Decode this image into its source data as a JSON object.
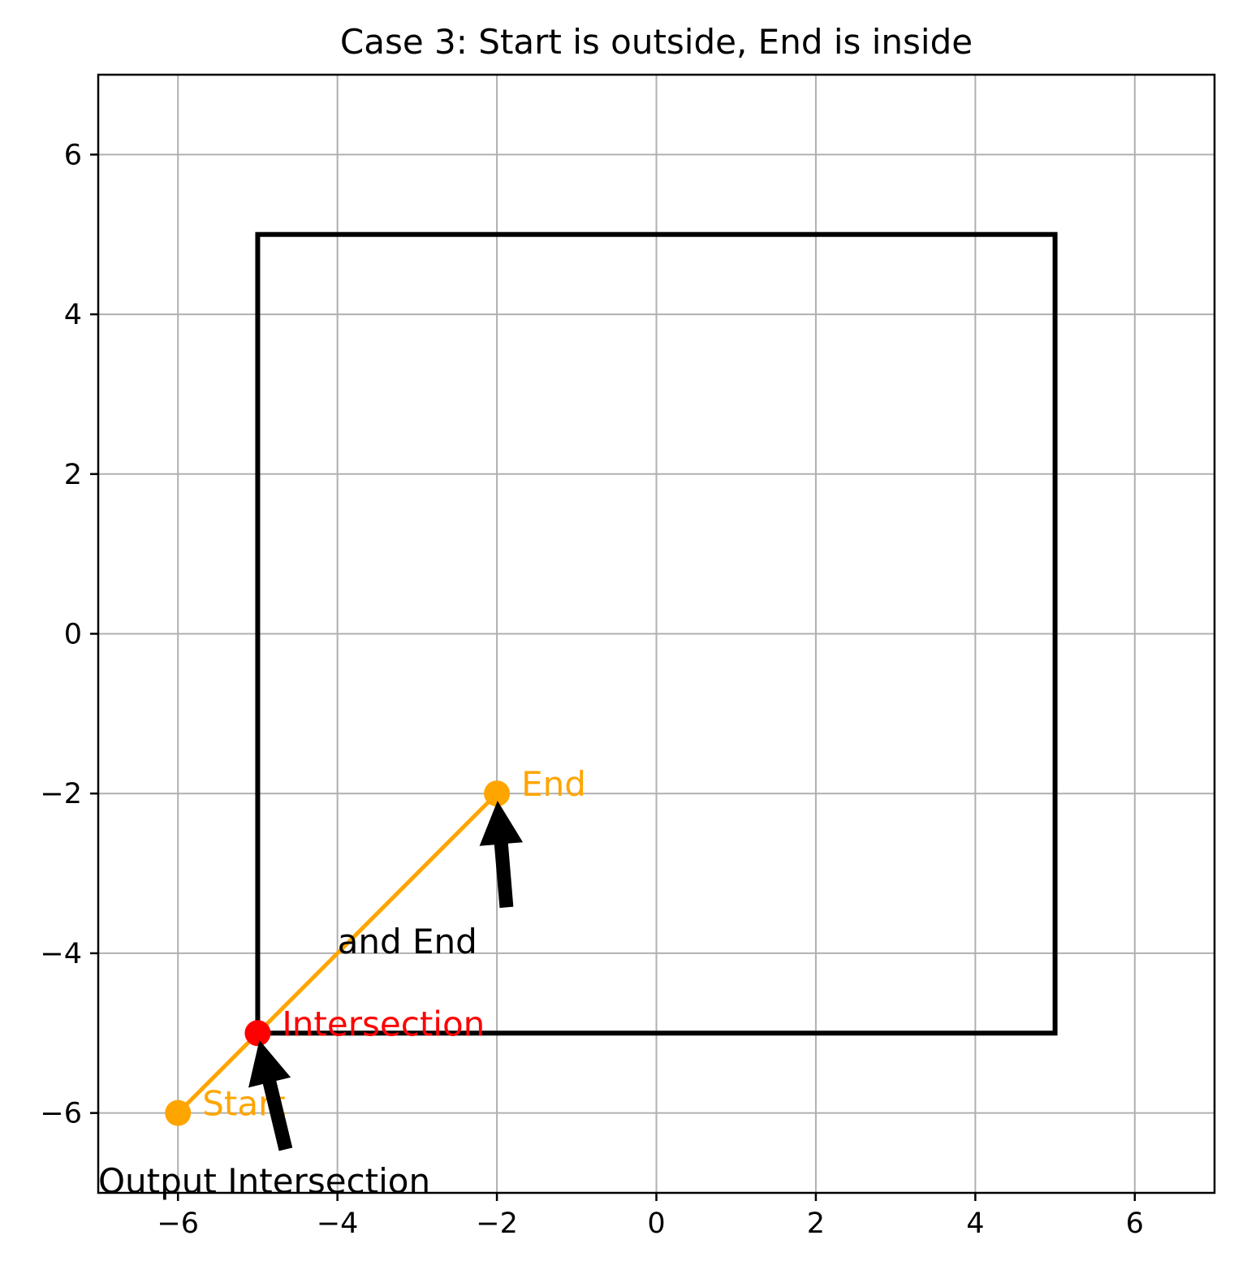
{
  "chart_data": {
    "type": "line",
    "title": "Case 3: Start is outside, End is inside",
    "xlabel": "",
    "ylabel": "",
    "xlim": [
      -7,
      7
    ],
    "ylim": [
      -7,
      7
    ],
    "grid": true,
    "xticks": [
      -6,
      -4,
      -2,
      0,
      2,
      4,
      6
    ],
    "yticks": [
      -6,
      -4,
      -2,
      0,
      2,
      4,
      6
    ],
    "xtick_labels": [
      "−6",
      "−4",
      "−2",
      "0",
      "2",
      "4",
      "6"
    ],
    "ytick_labels": [
      "−6",
      "−4",
      "−2",
      "0",
      "2",
      "4",
      "6"
    ],
    "rectangle": {
      "x_min": -5,
      "x_max": 5,
      "y_min": -5,
      "y_max": 5,
      "color": "#000000"
    },
    "segment": {
      "x": [
        -6,
        -2
      ],
      "y": [
        -6,
        -2
      ],
      "color": "#FFA500"
    },
    "points": [
      {
        "label": "Start",
        "x": -6,
        "y": -6,
        "color": "#FFA500"
      },
      {
        "label": "End",
        "x": -2,
        "y": -2,
        "color": "#FFA500"
      },
      {
        "label": "Intersection",
        "x": -5,
        "y": -5,
        "color": "#FF0000"
      }
    ],
    "annotations": [
      {
        "text": "Output Intersection",
        "text_x": -7,
        "text_y": -7,
        "target_x": -5,
        "target_y": -5
      },
      {
        "text": "and End",
        "text_x": -4,
        "text_y": -4,
        "target_x": -2,
        "target_y": -2
      }
    ]
  }
}
